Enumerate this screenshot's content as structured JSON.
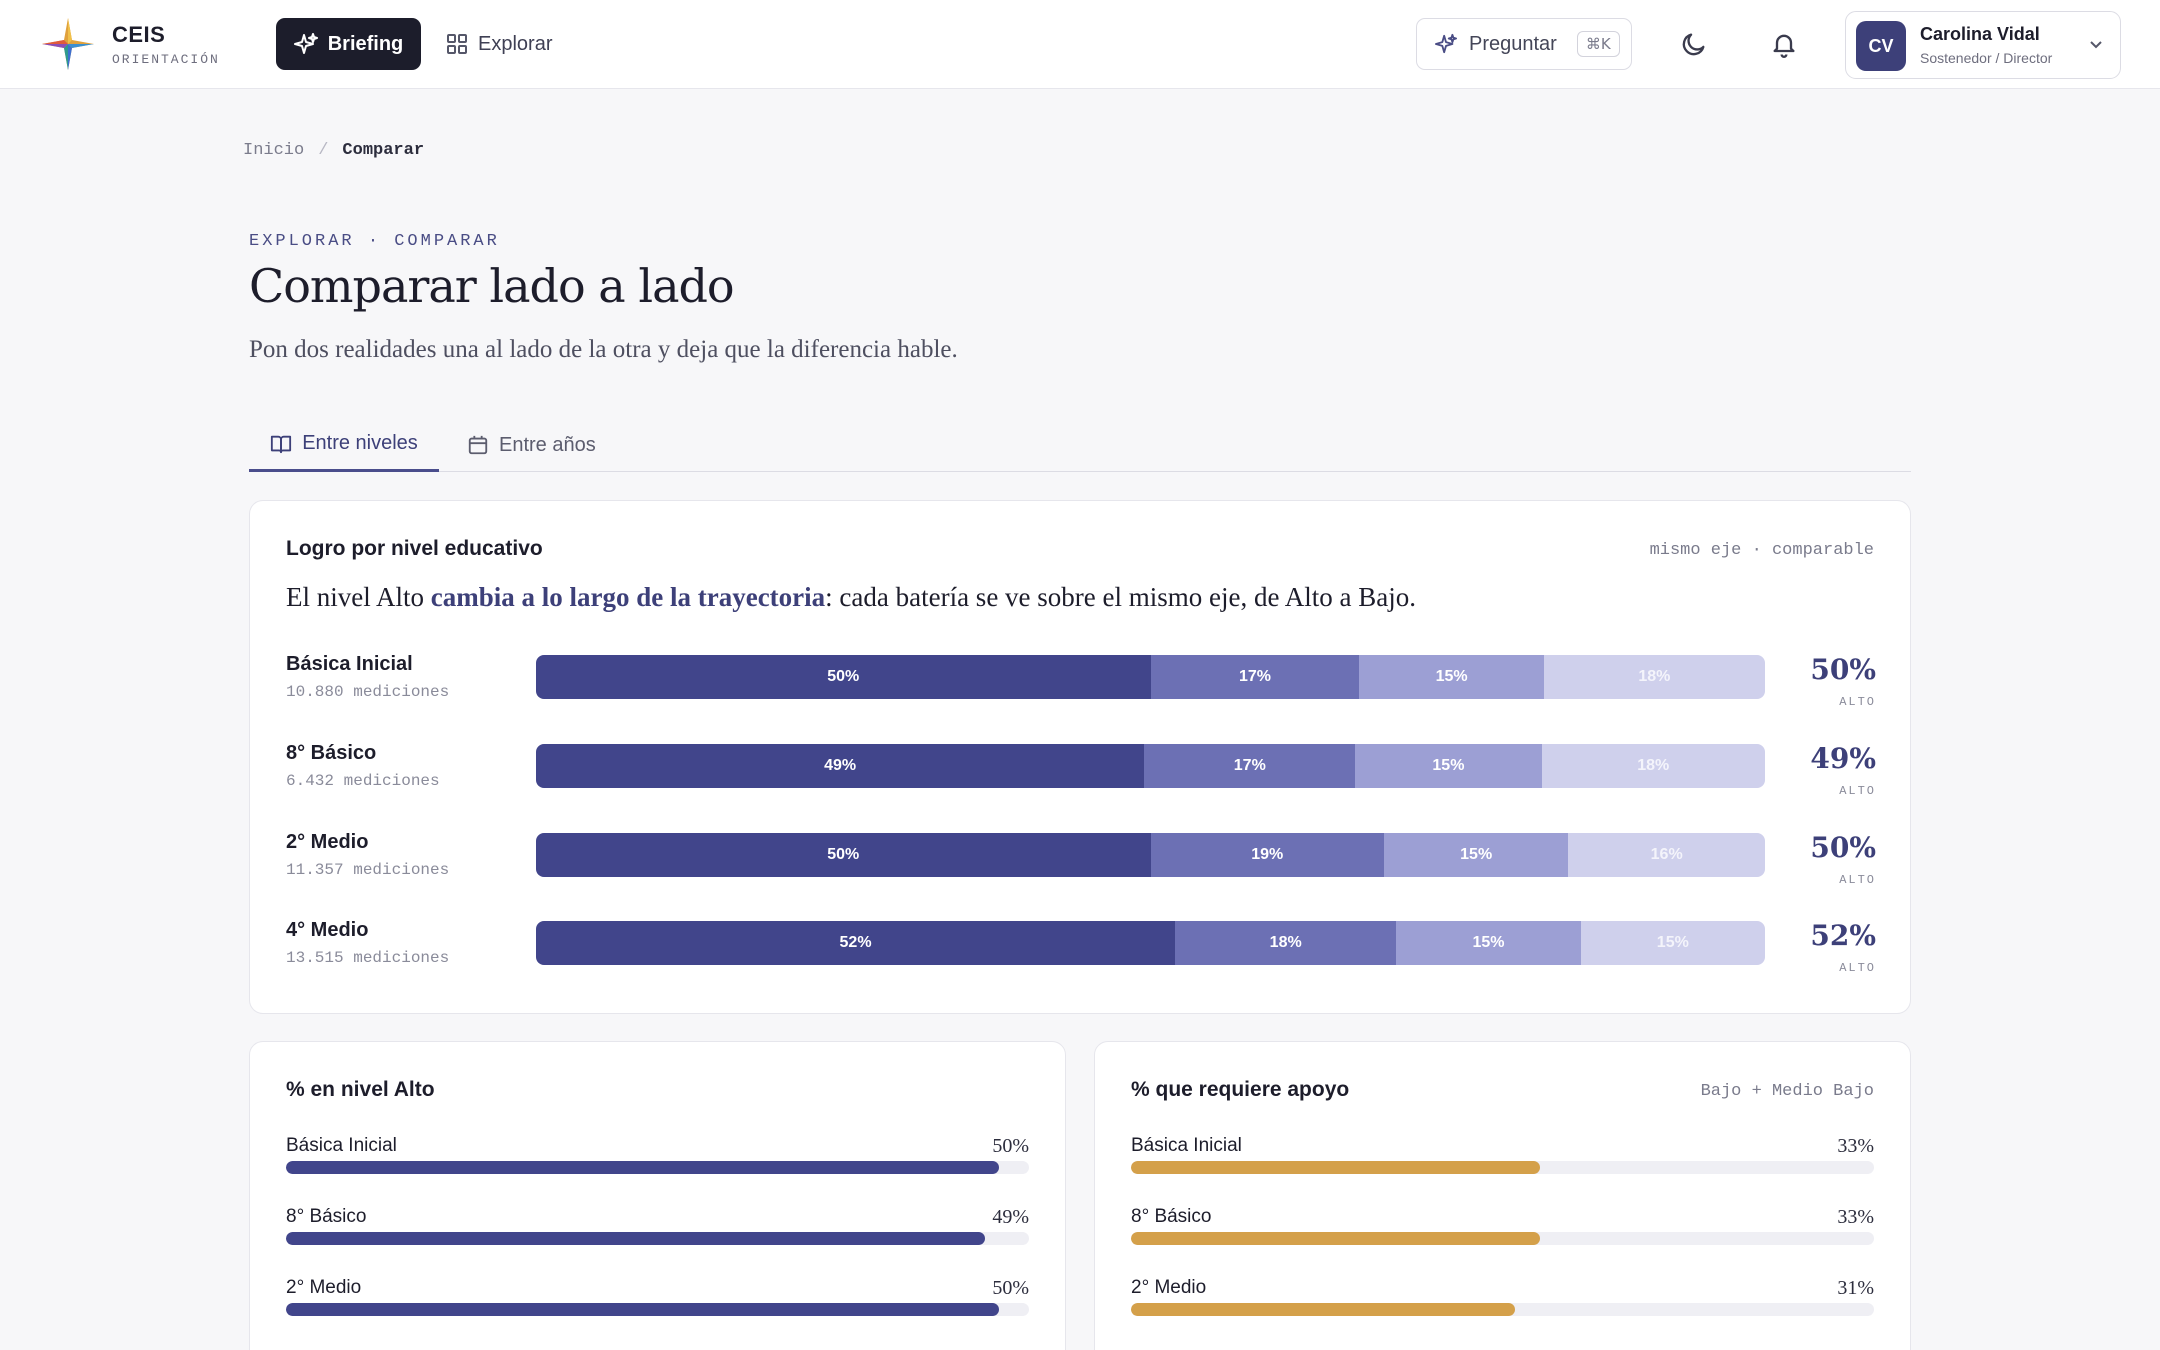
{
  "brand": {
    "name": "CEIS",
    "sub": "ORIENTACIÓN"
  },
  "nav": {
    "briefing": "Briefing",
    "explorar": "Explorar"
  },
  "header": {
    "ask_label": "Preguntar",
    "ask_shortcut": "⌘K"
  },
  "user": {
    "initials": "CV",
    "name": "Carolina Vidal",
    "role": "Sostenedor / Director"
  },
  "breadcrumb": {
    "home": "Inicio",
    "sep": "/",
    "current": "Comparar"
  },
  "page": {
    "eyebrow": "EXPLORAR · COMPARAR",
    "title": "Comparar lado a lado",
    "subtitle": "Pon dos realidades una al lado de la otra y deja que la diferencia hable."
  },
  "tabs": [
    {
      "label": "Entre niveles",
      "active": true
    },
    {
      "label": "Entre años",
      "active": false
    }
  ],
  "logro": {
    "title": "Logro por nivel educativo",
    "meta": "mismo eje · comparable",
    "headline_pre": "El nivel Alto ",
    "headline_hl": "cambia a lo largo de la trayectoria",
    "headline_post": ": cada batería se ve sobre el mismo eje, de Alto a Bajo.",
    "segment_colors": [
      "#41458b",
      "#6c70b4",
      "#9c9fd4",
      "#cfd0ec"
    ],
    "rows": [
      {
        "label": "Básica Inicial",
        "count": "10.880 mediciones",
        "segments": [
          50,
          17,
          15,
          18
        ],
        "segment_labels": [
          "50%",
          "17%",
          "15%",
          "18%"
        ],
        "pct": "50%",
        "pct_label": "ALTO"
      },
      {
        "label": "8° Básico",
        "count": "6.432 mediciones",
        "segments": [
          49,
          17,
          15,
          18
        ],
        "segment_labels": [
          "49%",
          "17%",
          "15%",
          "18%"
        ],
        "pct": "49%",
        "pct_label": "ALTO"
      },
      {
        "label": "2° Medio",
        "count": "11.357 mediciones",
        "segments": [
          50,
          19,
          15,
          16
        ],
        "segment_labels": [
          "50%",
          "19%",
          "15%",
          "16%"
        ],
        "pct": "50%",
        "pct_label": "ALTO"
      },
      {
        "label": "4° Medio",
        "count": "13.515 mediciones",
        "segments": [
          52,
          18,
          15,
          15
        ],
        "segment_labels": [
          "52%",
          "18%",
          "15%",
          "15%"
        ],
        "pct": "52%",
        "pct_label": "ALTO"
      }
    ]
  },
  "alto": {
    "title": "% en nivel Alto",
    "color": "#41458b",
    "rows": [
      {
        "label": "Básica Inicial",
        "value": 50,
        "value_label": "50%"
      },
      {
        "label": "8° Básico",
        "value": 49,
        "value_label": "49%"
      },
      {
        "label": "2° Medio",
        "value": 50,
        "value_label": "50%"
      }
    ]
  },
  "apoyo": {
    "title": "% que requiere apoyo",
    "meta": "Bajo + Medio Bajo",
    "color": "#d4a04a",
    "rows": [
      {
        "label": "Básica Inicial",
        "value": 33,
        "value_label": "33%"
      },
      {
        "label": "8° Básico",
        "value": 33,
        "value_label": "33%"
      },
      {
        "label": "2° Medio",
        "value": 31,
        "value_label": "31%"
      }
    ]
  }
}
